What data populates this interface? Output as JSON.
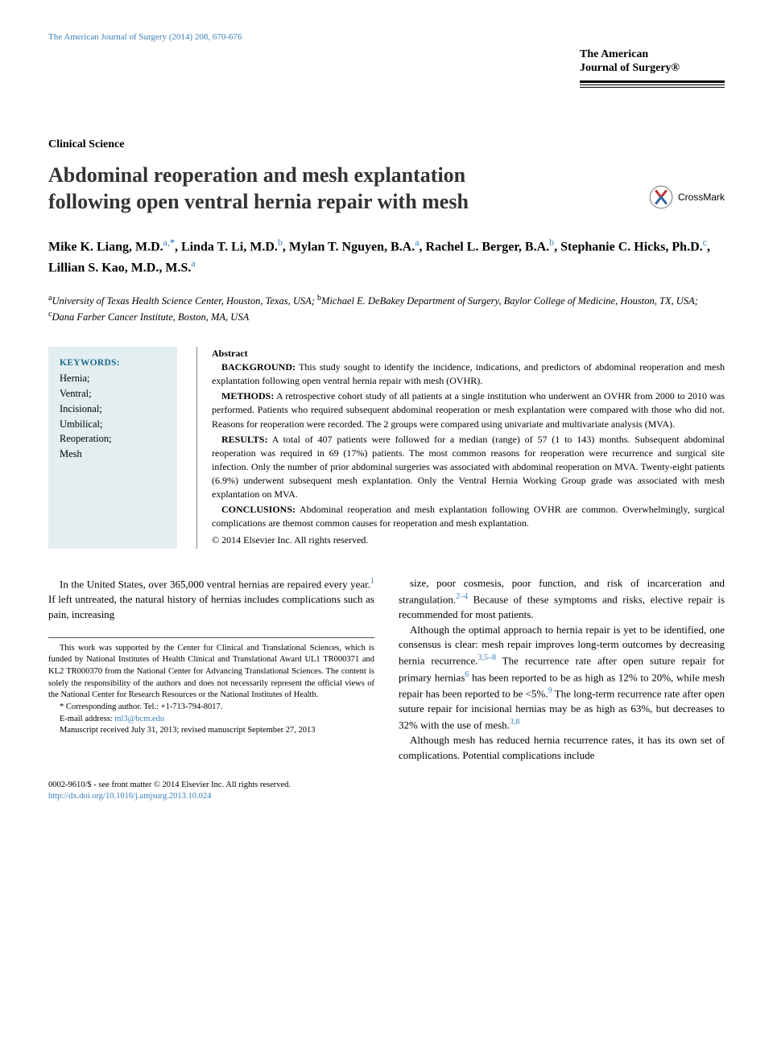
{
  "journal_ref": "The American Journal of Surgery (2014) 208, 670-676",
  "journal_box": {
    "line1": "The American",
    "line2": "Journal of Surgery®"
  },
  "section_label": "Clinical Science",
  "title": "Abdominal reoperation and mesh explantation following open ventral hernia repair with mesh",
  "crossmark_label": "CrossMark",
  "authors": [
    {
      "name": "Mike K. Liang, M.D.",
      "aff": "a,",
      "corr": "*"
    },
    {
      "name": "Linda T. Li, M.D.",
      "aff": "b"
    },
    {
      "name": "Mylan T. Nguyen, B.A.",
      "aff": "a"
    },
    {
      "name": "Rachel L. Berger, B.A.",
      "aff": "b"
    },
    {
      "name": "Stephanie C. Hicks, Ph.D.",
      "aff": "c"
    },
    {
      "name": "Lillian S. Kao, M.D., M.S.",
      "aff": "a"
    }
  ],
  "affiliations_html": "<sup>a</sup>University of Texas Health Science Center, Houston, Texas, USA; <sup>b</sup>Michael E. DeBakey Department of Surgery, Baylor College of Medicine, Houston, TX, USA; <sup>c</sup>Dana Farber Cancer Institute, Boston, MA, USA",
  "keywords": {
    "heading": "KEYWORDS:",
    "items": [
      "Hernia;",
      "Ventral;",
      "Incisional;",
      "Umbilical;",
      "Reoperation;",
      "Mesh"
    ]
  },
  "abstract": {
    "heading": "Abstract",
    "background_label": "BACKGROUND:",
    "background": "This study sought to identify the incidence, indications, and predictors of abdominal reoperation and mesh explantation following open ventral hernia repair with mesh (OVHR).",
    "methods_label": "METHODS:",
    "methods": "A retrospective cohort study of all patients at a single institution who underwent an OVHR from 2000 to 2010 was performed. Patients who required subsequent abdominal reoperation or mesh explantation were compared with those who did not. Reasons for reoperation were recorded. The 2 groups were compared using univariate and multivariate analysis (MVA).",
    "results_label": "RESULTS:",
    "results": "A total of 407 patients were followed for a median (range) of 57 (1 to 143) months. Subsequent abdominal reoperation was required in 69 (17%) patients. The most common reasons for reoperation were recurrence and surgical site infection. Only the number of prior abdominal surgeries was associated with abdominal reoperation on MVA. Twenty-eight patients (6.9%) underwent subsequent mesh explantation. Only the Ventral Hernia Working Group grade was associated with mesh explantation on MVA.",
    "conclusions_label": "CONCLUSIONS:",
    "conclusions": "Abdominal reoperation and mesh explantation following OVHR are common. Overwhelmingly, surgical complications are themost common causes for reoperation and mesh explantation.",
    "copyright": "© 2014 Elsevier Inc. All rights reserved."
  },
  "body": {
    "left_p1": "In the United States, over 365,000 ventral hernias are repaired every year.<span class='ref-link'>1</span> If left untreated, the natural history of hernias includes complications such as pain, increasing",
    "right_p1": "size, poor cosmesis, poor function, and risk of incarceration and strangulation.<span class='ref-link'>2–4</span> Because of these symptoms and risks, elective repair is recommended for most patients.",
    "right_p2": "Although the optimal approach to hernia repair is yet to be identified, one consensus is clear: mesh repair improves long-term outcomes by decreasing hernia recurrence.<span class='ref-link'>3,5–8</span> The recurrence rate after open suture repair for primary hernias<span class='ref-link'>6</span> has been reported to be as high as 12% to 20%, while mesh repair has been reported to be <5%.<span class='ref-link'>9</span> The long-term recurrence rate after open suture repair for incisional hernias may be as high as 63%, but decreases to 32% with the use of mesh.<span class='ref-link'>3,8</span>",
    "right_p3": "Although mesh has reduced hernia recurrence rates, it has its own set of complications. Potential complications include"
  },
  "footnotes": {
    "funding": "This work was supported by the Center for Clinical and Translational Sciences, which is funded by National Institutes of Health Clinical and Translational Award UL1 TR000371 and KL2 TR000370 from the National Center for Advancing Translational Sciences. The content is solely the responsibility of the authors and does not necessarily represent the official views of the National Center for Research Resources or the National Institutes of Health.",
    "corresponding": "* Corresponding author. Tel.: +1-713-794-8017.",
    "email_label": "E-mail address:",
    "email": "ml3@bcm.edu",
    "manuscript": "Manuscript received July 31, 2013; revised manuscript September 27, 2013"
  },
  "footer": {
    "line1": "0002-9610/$ - see front matter © 2014 Elsevier Inc. All rights reserved.",
    "doi": "http://dx.doi.org/10.1016/j.amjsurg.2013.10.024"
  },
  "colors": {
    "link": "#3b7fb8",
    "keywords_bg": "#e3eef1",
    "keywords_heading": "#1a6b8f"
  }
}
